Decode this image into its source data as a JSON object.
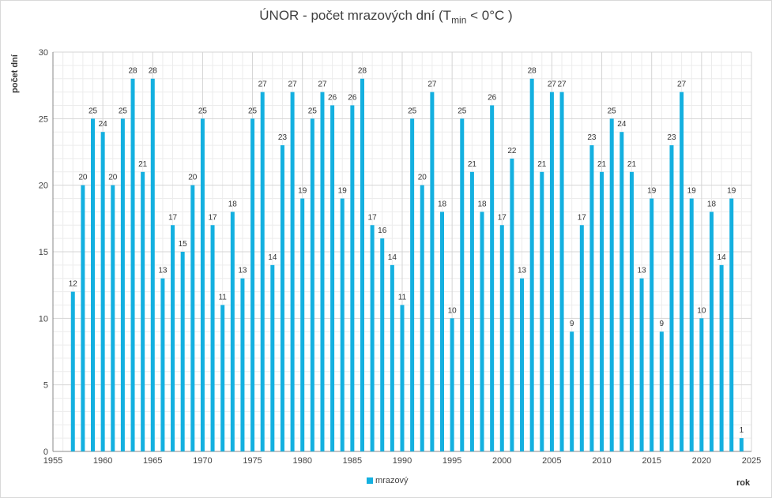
{
  "colors": {
    "bar": "#14b0e0",
    "grid_major": "#d4d4d4",
    "grid_minor": "#ececec",
    "axis": "#888888"
  },
  "chart_data": {
    "type": "bar",
    "title_main": "ÚNOR - počet mrazových dní (T",
    "title_sub": "min",
    "title_end": " < 0°C )",
    "xlabel": "rok",
    "ylabel": "počet dní",
    "xlim": [
      1955,
      2025
    ],
    "ylim": [
      0,
      30
    ],
    "xticks": [
      1955,
      1960,
      1965,
      1970,
      1975,
      1980,
      1985,
      1990,
      1995,
      2000,
      2005,
      2010,
      2015,
      2020,
      2025
    ],
    "yticks": [
      0,
      5,
      10,
      15,
      20,
      25,
      30
    ],
    "grid": true,
    "legend_position": "bottom",
    "series": [
      {
        "name": "mrazový",
        "x": [
          1957,
          1958,
          1959,
          1960,
          1961,
          1962,
          1963,
          1964,
          1965,
          1966,
          1967,
          1968,
          1969,
          1970,
          1971,
          1972,
          1973,
          1974,
          1975,
          1976,
          1977,
          1978,
          1979,
          1980,
          1981,
          1982,
          1983,
          1984,
          1985,
          1986,
          1987,
          1988,
          1989,
          1990,
          1991,
          1992,
          1993,
          1994,
          1995,
          1996,
          1997,
          1998,
          1999,
          2000,
          2001,
          2002,
          2003,
          2004,
          2005,
          2006,
          2007,
          2008,
          2009,
          2010,
          2011,
          2012,
          2013,
          2014,
          2015,
          2016,
          2017,
          2018,
          2019,
          2020,
          2021,
          2022,
          2023,
          2024
        ],
        "values": [
          12,
          20,
          25,
          24,
          20,
          25,
          28,
          21,
          28,
          13,
          17,
          15,
          20,
          25,
          17,
          11,
          18,
          13,
          25,
          27,
          14,
          23,
          27,
          19,
          25,
          27,
          26,
          19,
          26,
          28,
          17,
          16,
          14,
          11,
          25,
          20,
          27,
          18,
          10,
          25,
          21,
          18,
          26,
          17,
          22,
          13,
          28,
          21,
          27,
          27,
          9,
          17,
          23,
          21,
          25,
          24,
          21,
          13,
          19,
          9,
          23,
          27,
          19,
          10,
          18,
          14,
          19,
          1
        ]
      }
    ]
  }
}
